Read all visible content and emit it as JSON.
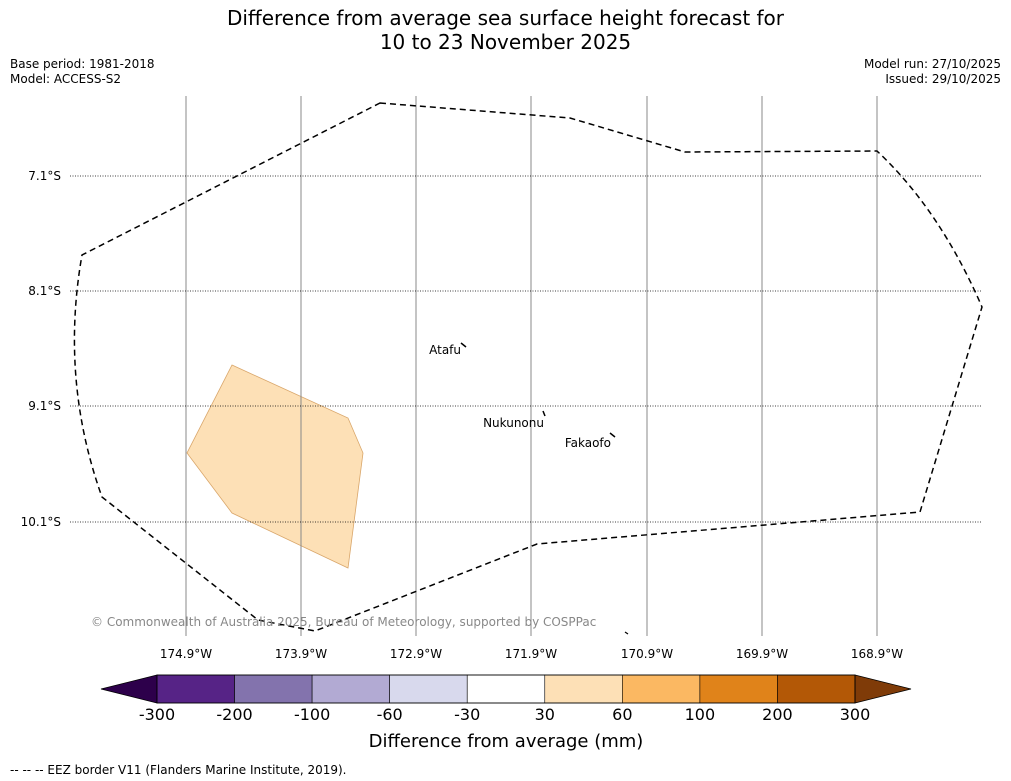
{
  "title_line1": "Difference from average sea surface height forecast for",
  "title_line2": "10 to 23 November 2025",
  "base_period": "Base period: 1981-2018",
  "model": "Model: ACCESS-S2",
  "model_run": "Model run: 27/10/2025",
  "issued": "Issued: 29/10/2025",
  "latitudes": [
    "7.1°S",
    "8.1°S",
    "9.1°S",
    "10.1°S"
  ],
  "longitudes": [
    "174.9°W",
    "173.9°W",
    "172.9°W",
    "171.9°W",
    "170.9°W",
    "169.9°W",
    "168.9°W"
  ],
  "places": [
    "Atafu",
    "Nukunonu",
    "Fakaofo"
  ],
  "anomaly_region": {
    "category": "30 to 60 mm",
    "color": "#fde0b6"
  },
  "copyright": "© Commonwealth of Australia 2025, Bureau of Meteorology, supported by COSPPac",
  "colorbar": {
    "ticks": [
      "-300",
      "-200",
      "-100",
      "-60",
      "-30",
      "30",
      "60",
      "100",
      "200",
      "300"
    ],
    "colors": [
      "#562386",
      "#8373ad",
      "#b2aad3",
      "#d8d9ed",
      "#ffffff",
      "#fde0b6",
      "#fbb862",
      "#e0831a",
      "#b35806"
    ],
    "under_color": "#2d004b",
    "over_color": "#7f3b08",
    "label": "Difference from average (mm)"
  },
  "footnote": "-- -- -- EEZ border V11 (Flanders Marine Institute, 2019)."
}
